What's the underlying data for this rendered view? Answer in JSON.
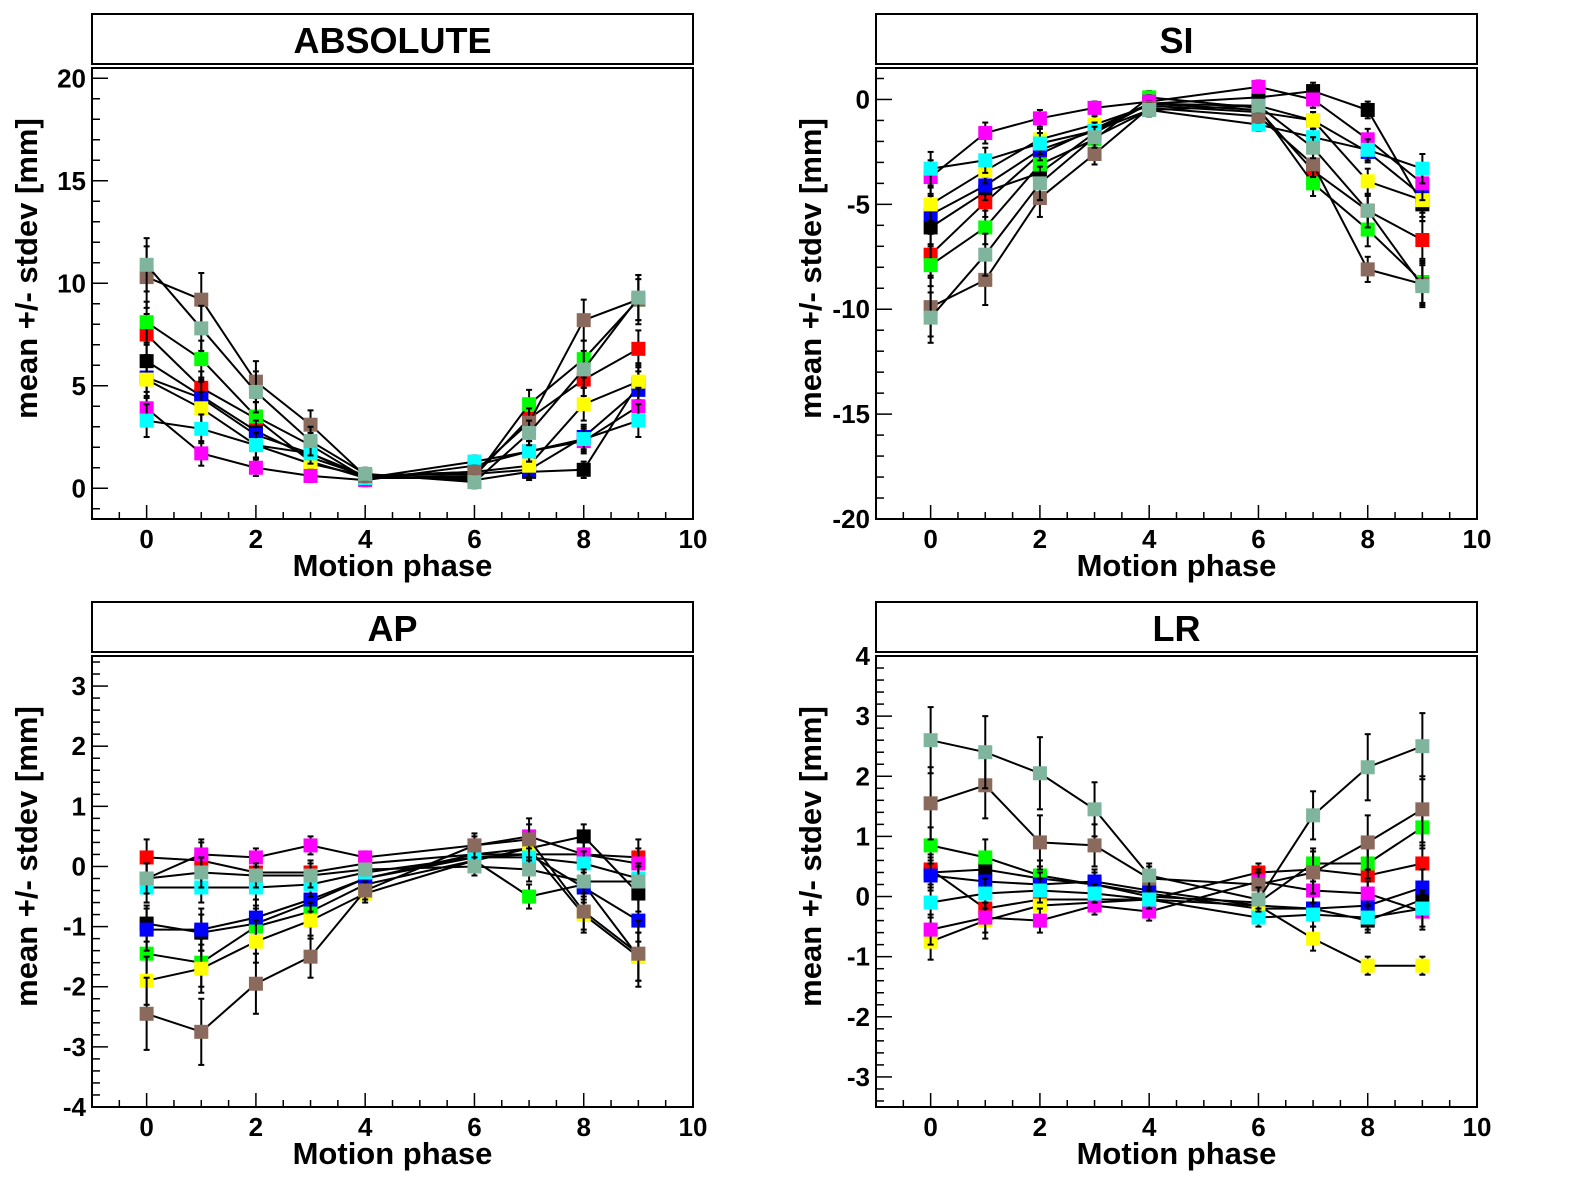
{
  "figure": {
    "title": ""
  },
  "chart_data": [
    {
      "type": "scatter",
      "title": "ABSOLUTE",
      "xlabel": "Motion phase",
      "ylabel": "mean +/- stdev [mm]",
      "xlim": [
        -1,
        10
      ],
      "ylim": [
        -1.5,
        20.5
      ],
      "xticks": [
        0,
        2,
        4,
        6,
        8,
        10
      ],
      "yticks": [
        0,
        5,
        10,
        15,
        20
      ],
      "grid": false,
      "x": [
        0,
        1,
        2,
        3,
        4,
        6,
        7,
        8,
        9
      ],
      "series": [
        {
          "color": "#000000",
          "values": [
            6.2,
            4.5,
            2.8,
            1.5,
            0.6,
            0.4,
            0.8,
            0.9,
            5.1
          ],
          "err": [
            0.8,
            0.8,
            0.7,
            0.5,
            0.3,
            0.3,
            0.4,
            0.4,
            0.9
          ]
        },
        {
          "color": "#ff0000",
          "values": [
            7.5,
            4.9,
            3.4,
            1.3,
            0.5,
            0.6,
            3.4,
            5.3,
            6.8
          ],
          "err": [
            1.0,
            0.8,
            0.8,
            0.5,
            0.3,
            0.3,
            0.6,
            0.8,
            0.9
          ]
        },
        {
          "color": "#00ff00",
          "values": [
            8.1,
            6.3,
            3.5,
            2.1,
            0.5,
            0.5,
            4.1,
            6.3,
            9.2
          ],
          "err": [
            1.0,
            0.9,
            0.9,
            0.6,
            0.3,
            0.3,
            0.7,
            0.9,
            1.0
          ]
        },
        {
          "color": "#0000ff",
          "values": [
            5.4,
            4.4,
            2.6,
            1.7,
            0.6,
            0.7,
            0.9,
            2.5,
            4.8
          ],
          "err": [
            0.9,
            0.8,
            0.7,
            0.5,
            0.3,
            0.3,
            0.4,
            0.6,
            0.9
          ]
        },
        {
          "color": "#ffff00",
          "values": [
            5.3,
            3.9,
            2.1,
            1.2,
            0.6,
            0.8,
            1.1,
            4.1,
            5.2
          ],
          "err": [
            0.9,
            0.8,
            0.6,
            0.5,
            0.3,
            0.3,
            0.5,
            0.8,
            0.9
          ]
        },
        {
          "color": "#ff00ff",
          "values": [
            3.9,
            1.7,
            1.0,
            0.6,
            0.4,
            1.1,
            1.8,
            2.3,
            4.0
          ],
          "err": [
            0.8,
            0.6,
            0.4,
            0.3,
            0.3,
            0.3,
            0.5,
            0.6,
            0.9
          ]
        },
        {
          "color": "#00ffff",
          "values": [
            3.3,
            2.9,
            2.1,
            1.7,
            0.5,
            1.3,
            1.8,
            2.4,
            3.3
          ],
          "err": [
            0.8,
            0.7,
            0.6,
            0.5,
            0.3,
            0.3,
            0.5,
            0.6,
            0.8
          ]
        },
        {
          "color": "#8a6a5c",
          "values": [
            10.3,
            9.2,
            5.2,
            3.1,
            0.6,
            0.8,
            3.2,
            8.2,
            9.2
          ],
          "err": [
            1.5,
            1.3,
            1.0,
            0.7,
            0.3,
            0.3,
            0.7,
            1.0,
            1.2
          ]
        },
        {
          "color": "#7fb59c",
          "values": [
            10.9,
            7.8,
            4.7,
            2.3,
            0.7,
            0.3,
            2.7,
            5.8,
            9.3
          ],
          "err": [
            1.3,
            1.1,
            1.0,
            0.7,
            0.3,
            0.3,
            0.6,
            0.9,
            1.1
          ]
        }
      ]
    },
    {
      "type": "scatter",
      "title": "SI",
      "xlabel": "Motion phase",
      "ylabel": "mean +/- stdev [mm]",
      "xlim": [
        -1,
        10
      ],
      "ylim": [
        -20,
        1.5
      ],
      "xticks": [
        0,
        2,
        4,
        6,
        8,
        10
      ],
      "yticks": [
        0,
        -5,
        -10,
        -15,
        -20
      ],
      "grid": false,
      "x": [
        0,
        1,
        2,
        3,
        4,
        6,
        7,
        8,
        9
      ],
      "series": [
        {
          "color": "#000000",
          "values": [
            -6.1,
            -4.4,
            -3.5,
            -1.6,
            -0.2,
            0.1,
            0.4,
            -0.5,
            -5.0
          ],
          "err": [
            0.9,
            0.7,
            0.6,
            0.4,
            0.3,
            0.3,
            0.4,
            0.4,
            0.8
          ]
        },
        {
          "color": "#ff0000",
          "values": [
            -7.4,
            -4.9,
            -2.6,
            -1.4,
            -0.2,
            -0.5,
            -3.4,
            -5.3,
            -6.7
          ],
          "err": [
            1.0,
            0.7,
            0.6,
            0.4,
            0.3,
            0.3,
            0.5,
            0.7,
            0.9
          ]
        },
        {
          "color": "#00ff00",
          "values": [
            -7.9,
            -6.1,
            -3.1,
            -1.9,
            0.1,
            -0.4,
            -4.0,
            -6.2,
            -8.7
          ],
          "err": [
            1.0,
            0.8,
            0.6,
            0.5,
            0.3,
            0.3,
            0.6,
            0.8,
            1.0
          ]
        },
        {
          "color": "#0000ff",
          "values": [
            -5.5,
            -4.1,
            -2.4,
            -1.5,
            -0.2,
            -0.3,
            -1.0,
            -2.5,
            -4.6
          ],
          "err": [
            0.9,
            0.7,
            0.5,
            0.4,
            0.3,
            0.3,
            0.4,
            0.5,
            0.8
          ]
        },
        {
          "color": "#ffff00",
          "values": [
            -5.0,
            -3.4,
            -1.9,
            -1.2,
            -0.3,
            -0.6,
            -1.0,
            -3.9,
            -4.8
          ],
          "err": [
            0.8,
            0.6,
            0.5,
            0.4,
            0.3,
            0.3,
            0.4,
            0.6,
            0.8
          ]
        },
        {
          "color": "#ff00ff",
          "values": [
            -3.7,
            -1.6,
            -0.9,
            -0.4,
            -0.1,
            0.6,
            0.0,
            -1.9,
            -4.0
          ],
          "err": [
            0.8,
            0.5,
            0.4,
            0.3,
            0.3,
            0.3,
            0.4,
            0.5,
            0.8
          ]
        },
        {
          "color": "#00ffff",
          "values": [
            -3.3,
            -2.9,
            -2.1,
            -1.5,
            -0.5,
            -1.2,
            -1.8,
            -2.4,
            -3.3
          ],
          "err": [
            0.8,
            0.6,
            0.5,
            0.4,
            0.3,
            0.3,
            0.4,
            0.5,
            0.7
          ]
        },
        {
          "color": "#8a6a5c",
          "values": [
            -9.9,
            -8.6,
            -4.7,
            -2.6,
            -0.4,
            -0.8,
            -3.1,
            -8.1,
            -8.8
          ],
          "err": [
            1.4,
            1.2,
            0.9,
            0.5,
            0.3,
            0.3,
            0.6,
            0.6,
            1.0
          ]
        },
        {
          "color": "#7fb59c",
          "values": [
            -10.4,
            -7.4,
            -4.0,
            -1.8,
            -0.5,
            -0.3,
            -2.3,
            -5.3,
            -8.9
          ],
          "err": [
            1.2,
            1.0,
            0.8,
            0.5,
            0.3,
            0.3,
            0.5,
            0.8,
            1.0
          ]
        }
      ]
    },
    {
      "type": "scatter",
      "title": "AP",
      "xlabel": "Motion phase",
      "ylabel": "mean +/- stdev [mm]",
      "xlim": [
        -1,
        10
      ],
      "ylim": [
        -4,
        3.5
      ],
      "xticks": [
        0,
        2,
        4,
        6,
        8,
        10
      ],
      "yticks": [
        3,
        2,
        1,
        0,
        -1,
        -2,
        -3,
        -4
      ],
      "grid": false,
      "x": [
        0,
        1,
        2,
        3,
        4,
        6,
        7,
        8,
        9
      ],
      "series": [
        {
          "color": "#000000",
          "values": [
            -0.95,
            -1.1,
            -0.95,
            -0.6,
            -0.2,
            0.2,
            0.3,
            0.5,
            -0.45
          ],
          "err": [
            0.3,
            0.3,
            0.3,
            0.2,
            0.15,
            0.15,
            0.2,
            0.2,
            0.3
          ]
        },
        {
          "color": "#ff0000",
          "values": [
            0.15,
            0.1,
            -0.1,
            -0.1,
            0.05,
            0.2,
            0.2,
            0.2,
            0.15
          ],
          "err": [
            0.3,
            0.3,
            0.2,
            0.2,
            0.15,
            0.15,
            0.2,
            0.2,
            0.3
          ]
        },
        {
          "color": "#00ff00",
          "values": [
            -1.45,
            -1.6,
            -1.0,
            -0.75,
            -0.3,
            0.1,
            -0.5,
            -0.3,
            -1.5
          ],
          "err": [
            0.4,
            0.4,
            0.3,
            0.25,
            0.15,
            0.15,
            0.2,
            0.25,
            0.4
          ]
        },
        {
          "color": "#0000ff",
          "values": [
            -1.05,
            -1.05,
            -0.85,
            -0.55,
            -0.2,
            0.15,
            0.2,
            -0.35,
            -0.9
          ],
          "err": [
            0.35,
            0.35,
            0.3,
            0.2,
            0.15,
            0.15,
            0.2,
            0.25,
            0.35
          ]
        },
        {
          "color": "#ffff00",
          "values": [
            -1.9,
            -1.7,
            -1.25,
            -0.9,
            -0.45,
            0.1,
            0.3,
            -0.8,
            -1.5
          ],
          "err": [
            0.4,
            0.4,
            0.35,
            0.3,
            0.15,
            0.15,
            0.2,
            0.3,
            0.4
          ]
        },
        {
          "color": "#ff00ff",
          "values": [
            -0.2,
            0.2,
            0.15,
            0.35,
            0.15,
            0.35,
            0.5,
            0.2,
            0.05
          ],
          "err": [
            0.25,
            0.25,
            0.15,
            0.15,
            0.1,
            0.15,
            0.2,
            0.2,
            0.25
          ]
        },
        {
          "color": "#00ffff",
          "values": [
            -0.35,
            -0.35,
            -0.35,
            -0.3,
            -0.1,
            0.15,
            0.15,
            0.05,
            -0.2
          ],
          "err": [
            0.25,
            0.25,
            0.2,
            0.2,
            0.1,
            0.15,
            0.2,
            0.2,
            0.25
          ]
        },
        {
          "color": "#8a6a5c",
          "values": [
            -2.45,
            -2.75,
            -1.95,
            -1.5,
            -0.4,
            0.35,
            0.45,
            -0.75,
            -1.45
          ],
          "err": [
            0.6,
            0.55,
            0.5,
            0.35,
            0.15,
            0.2,
            0.35,
            0.3,
            0.55
          ]
        },
        {
          "color": "#7fb59c",
          "values": [
            -0.2,
            -0.1,
            -0.15,
            -0.15,
            -0.05,
            0.0,
            -0.05,
            -0.25,
            -0.25
          ],
          "err": [
            0.25,
            0.25,
            0.2,
            0.2,
            0.1,
            0.15,
            0.2,
            0.2,
            0.25
          ]
        }
      ]
    },
    {
      "type": "scatter",
      "title": "LR",
      "xlabel": "Motion phase",
      "ylabel": "mean +/- stdev [mm]",
      "xlim": [
        -1,
        10
      ],
      "ylim": [
        -3.5,
        4.0
      ],
      "xticks": [
        0,
        2,
        4,
        6,
        8,
        10
      ],
      "yticks": [
        4,
        3,
        2,
        1,
        0,
        -1,
        -2,
        -3
      ],
      "grid": false,
      "x": [
        0,
        1,
        2,
        3,
        4,
        6,
        7,
        8,
        9
      ],
      "series": [
        {
          "color": "#000000",
          "values": [
            0.4,
            0.45,
            0.3,
            0.2,
            0.05,
            -0.2,
            -0.2,
            -0.4,
            -0.05
          ],
          "err": [
            0.25,
            0.25,
            0.2,
            0.2,
            0.15,
            0.15,
            0.2,
            0.2,
            0.3
          ]
        },
        {
          "color": "#ff0000",
          "values": [
            0.45,
            -0.2,
            -0.05,
            -0.05,
            -0.05,
            0.4,
            0.45,
            0.35,
            0.55
          ],
          "err": [
            0.25,
            0.25,
            0.2,
            0.2,
            0.15,
            0.15,
            0.2,
            0.2,
            0.3
          ]
        },
        {
          "color": "#00ff00",
          "values": [
            0.85,
            0.65,
            0.35,
            0.2,
            0.0,
            -0.1,
            0.55,
            0.55,
            1.15
          ],
          "err": [
            0.3,
            0.3,
            0.25,
            0.2,
            0.15,
            0.15,
            0.25,
            0.25,
            0.35
          ]
        },
        {
          "color": "#0000ff",
          "values": [
            0.35,
            0.25,
            0.2,
            0.25,
            0.1,
            -0.15,
            -0.2,
            -0.15,
            0.15
          ],
          "err": [
            0.25,
            0.25,
            0.2,
            0.2,
            0.15,
            0.15,
            0.2,
            0.2,
            0.3
          ]
        },
        {
          "color": "#ffff00",
          "values": [
            -0.75,
            -0.4,
            -0.15,
            -0.1,
            -0.05,
            -0.15,
            -0.7,
            -1.15,
            -1.15
          ],
          "err": [
            0.3,
            0.3,
            0.2,
            0.15,
            0.1,
            0.15,
            0.2,
            0.15,
            0.15
          ]
        },
        {
          "color": "#ff00ff",
          "values": [
            -0.55,
            -0.35,
            -0.4,
            -0.15,
            -0.25,
            0.25,
            0.1,
            0.05,
            -0.25
          ],
          "err": [
            0.25,
            0.25,
            0.2,
            0.15,
            0.15,
            0.2,
            0.2,
            0.2,
            0.3
          ]
        },
        {
          "color": "#00ffff",
          "values": [
            -0.1,
            0.05,
            0.1,
            0.05,
            -0.05,
            -0.35,
            -0.3,
            -0.35,
            -0.2
          ],
          "err": [
            0.25,
            0.25,
            0.2,
            0.15,
            0.15,
            0.15,
            0.2,
            0.2,
            0.3
          ]
        },
        {
          "color": "#8a6a5c",
          "values": [
            1.55,
            1.85,
            0.9,
            0.85,
            0.3,
            0.2,
            0.4,
            0.9,
            1.45
          ],
          "err": [
            0.6,
            0.55,
            0.45,
            0.35,
            0.2,
            0.2,
            0.35,
            0.45,
            0.55
          ]
        },
        {
          "color": "#7fb59c",
          "values": [
            2.6,
            2.4,
            2.05,
            1.45,
            0.35,
            -0.05,
            1.35,
            2.15,
            2.5
          ],
          "err": [
            0.55,
            0.6,
            0.6,
            0.45,
            0.2,
            0.2,
            0.4,
            0.55,
            0.55
          ]
        }
      ]
    }
  ]
}
